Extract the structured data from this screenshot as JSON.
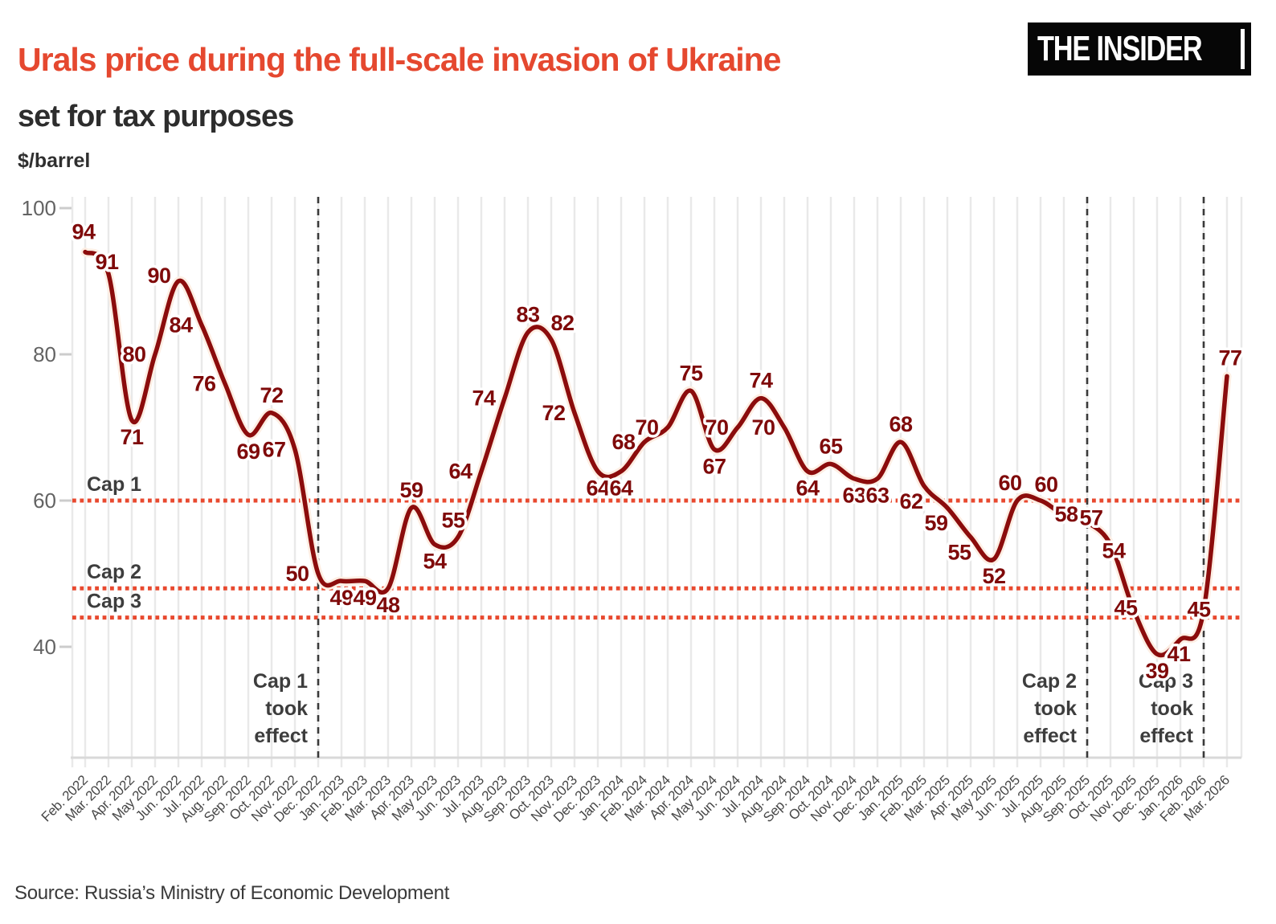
{
  "header": {
    "title": "Urals price during the full-scale invasion of Ukraine",
    "subtitle": "set for tax purposes",
    "logo_text": "THE INSIDER"
  },
  "unit_label": "$/barrel",
  "source_note": "Source: Russia’s Ministry of Economic Development",
  "colors": {
    "title_red": "#e5482f",
    "line_dark_red": "#8b0c0c",
    "line_halo": "#fdeee3",
    "value_label_red": "#7f0a0a",
    "cap_dotted_red": "#e8492f",
    "annotation_gray": "#3d3d3d",
    "event_dash_gray": "#3a3a3a",
    "y_tick_gray": "#636363",
    "x_label_gray": "#474747",
    "gridline_gray": "#e9e9e9",
    "axis_line_gray": "#d9d9d9",
    "logo_bg": "#060606",
    "background": "#ffffff"
  },
  "chart_data": {
    "type": "line",
    "title": "Urals price during the full-scale invasion of Ukraine",
    "subtitle": "set for tax purposes",
    "ylabel": "$/barrel",
    "xlabel": "",
    "grid": "vertical-monthly",
    "legend": "none",
    "yticks": [
      40,
      60,
      80,
      100
    ],
    "ylim": [
      25,
      102
    ],
    "x": [
      "Feb. 2022",
      "Mar. 2022",
      "Apr. 2022",
      "May 2022",
      "Jun. 2022",
      "Jul. 2022",
      "Aug. 2022",
      "Sep. 2022",
      "Oct. 2022",
      "Nov. 2022",
      "Dec. 2022",
      "Jan. 2023",
      "Feb. 2023",
      "Mar. 2023",
      "Apr. 2023",
      "May 2023",
      "Jun. 2023",
      "Jul. 2023",
      "Aug. 2023",
      "Sep. 2023",
      "Oct. 2023",
      "Nov. 2023",
      "Dec. 2023",
      "Jan. 2024",
      "Feb. 2024",
      "Mar. 2024",
      "Apr. 2024",
      "May 2024",
      "Jun. 2024",
      "Jul. 2024",
      "Aug. 2024",
      "Sep. 2024",
      "Oct. 2024",
      "Nov. 2024",
      "Dec. 2024",
      "Jan. 2025",
      "Feb. 2025",
      "Mar. 2025",
      "Apr. 2025",
      "May 2025",
      "Jun. 2025",
      "Jul. 2025",
      "Aug. 2025",
      "Sep. 2025",
      "Oct. 2025",
      "Nov. 2025",
      "Dec. 2025",
      "Jan. 2026",
      "Feb. 2026",
      "Mar. 2026"
    ],
    "series": [
      {
        "name": "Urals price set for tax purposes, $/barrel",
        "values": [
          94,
          91,
          71,
          80,
          90,
          84,
          76,
          69,
          72,
          67,
          50,
          49,
          49,
          48,
          59,
          54,
          55,
          64,
          74,
          83,
          82,
          72,
          64,
          64,
          68,
          70,
          75,
          67,
          70,
          74,
          70,
          64,
          65,
          63,
          63,
          68,
          62,
          59,
          55,
          52,
          60,
          60,
          58,
          57,
          54,
          45,
          39,
          41,
          45,
          77
        ]
      }
    ],
    "caps": [
      {
        "label": "Cap 1",
        "value": 60
      },
      {
        "label": "Cap 2",
        "value": 48
      },
      {
        "label": "Cap 3",
        "value": 44
      }
    ],
    "events": [
      {
        "lines": [
          "Cap 1",
          "took",
          "effect"
        ],
        "month": "Dec. 2022"
      },
      {
        "lines": [
          "Cap 2",
          "took",
          "effect"
        ],
        "month": "Sep. 2025"
      },
      {
        "lines": [
          "Cap 3",
          "took",
          "effect"
        ],
        "month": "Feb. 2026"
      }
    ]
  }
}
